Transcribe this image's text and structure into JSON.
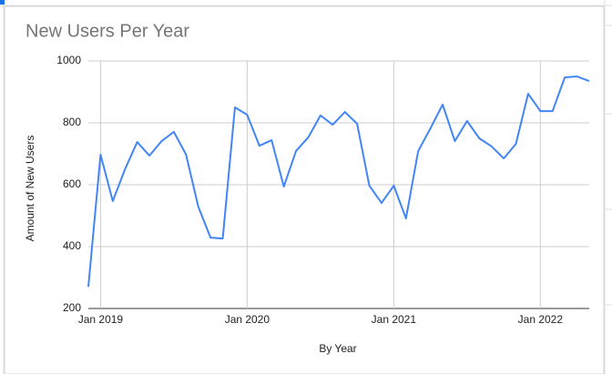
{
  "chart_data": {
    "type": "line",
    "title": "New Users Per Year",
    "x_label": "By Year",
    "y_label": "Amount of New Users",
    "x": [
      "2018-12",
      "2019-01",
      "2019-02",
      "2019-03",
      "2019-04",
      "2019-05",
      "2019-06",
      "2019-07",
      "2019-08",
      "2019-09",
      "2019-10",
      "2019-11",
      "2019-12",
      "2020-01",
      "2020-02",
      "2020-03",
      "2020-04",
      "2020-05",
      "2020-06",
      "2020-07",
      "2020-08",
      "2020-09",
      "2020-10",
      "2020-11",
      "2020-12",
      "2021-01",
      "2021-02",
      "2021-03",
      "2021-04",
      "2021-05",
      "2021-06",
      "2021-07",
      "2021-08",
      "2021-09",
      "2021-10",
      "2021-11",
      "2021-12",
      "2022-01",
      "2022-02",
      "2022-03",
      "2022-04",
      "2022-05"
    ],
    "series": [
      {
        "name": "New Users",
        "color": "#4285f4",
        "values": [
          270,
          697,
          547,
          650,
          738,
          694,
          741,
          771,
          697,
          529,
          429,
          426,
          850,
          826,
          726,
          744,
          594,
          709,
          753,
          824,
          794,
          835,
          797,
          597,
          541,
          597,
          491,
          709,
          782,
          859,
          741,
          806,
          750,
          724,
          685,
          732,
          894,
          838,
          838,
          947,
          950,
          935
        ]
      }
    ],
    "xlim": [
      "2018-12",
      "2022-05"
    ],
    "xticks": [
      {
        "value": "2019-01",
        "label": "Jan 2019"
      },
      {
        "value": "2020-01",
        "label": "Jan 2020"
      },
      {
        "value": "2021-01",
        "label": "Jan 2021"
      },
      {
        "value": "2022-01",
        "label": "Jan 2022"
      }
    ],
    "ylim": [
      200,
      1000
    ],
    "yticks": [
      200,
      400,
      600,
      800,
      1000
    ],
    "grid": true
  }
}
